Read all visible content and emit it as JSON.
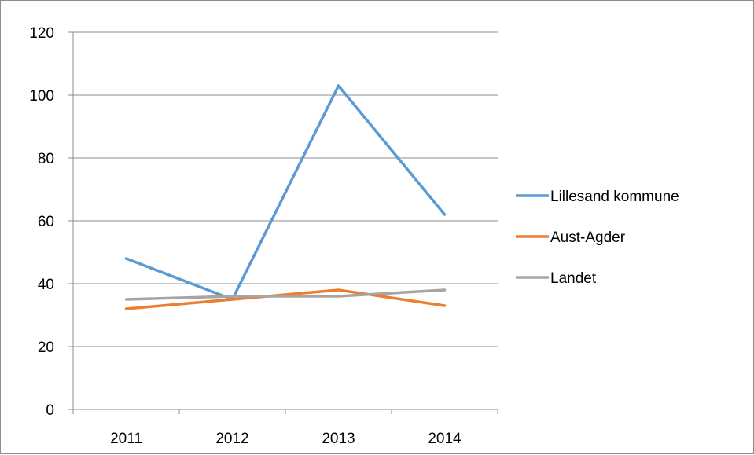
{
  "chart_data": {
    "type": "line",
    "title": "",
    "xlabel": "",
    "ylabel": "",
    "categories": [
      "2011",
      "2012",
      "2013",
      "2014"
    ],
    "ylim": [
      0,
      120
    ],
    "yticks": [
      0,
      20,
      40,
      60,
      80,
      100,
      120
    ],
    "grid": true,
    "legend_position": "right",
    "series": [
      {
        "name": "Lillesand kommune",
        "color": "#5b9bd5",
        "values": [
          48,
          35,
          103,
          62
        ]
      },
      {
        "name": "Aust-Agder",
        "color": "#ed7d31",
        "values": [
          32,
          35,
          38,
          33
        ]
      },
      {
        "name": "Landet",
        "color": "#a5a5a5",
        "values": [
          35,
          36,
          36,
          38
        ]
      }
    ]
  }
}
